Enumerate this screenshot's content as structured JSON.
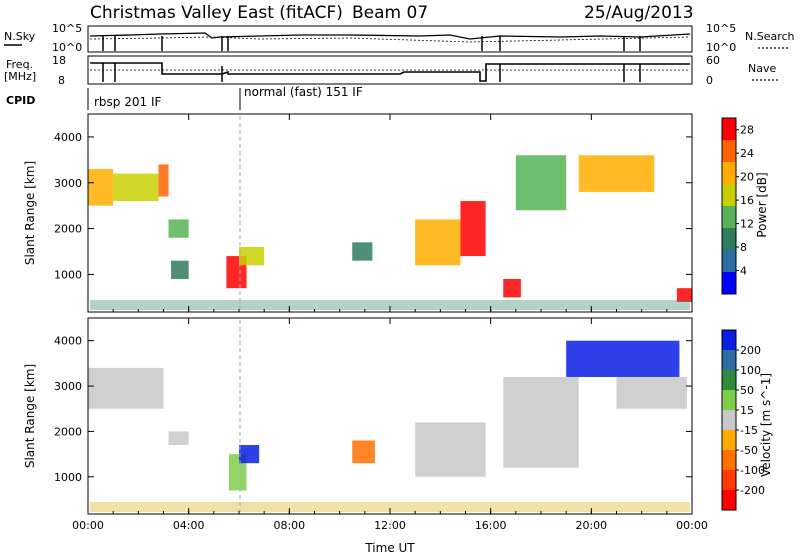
{
  "header": {
    "title": "Christmas Valley East (fitACF)",
    "beam": "Beam 07",
    "date": "25/Aug/2013"
  },
  "panels": {
    "noise": {
      "left_label": "N.Sky",
      "left_ticks": [
        "10^5",
        "10^0"
      ],
      "right_ticks": [
        "10^5",
        "10^0"
      ],
      "right_label": "N.Search"
    },
    "freq": {
      "left_label": [
        "Freq.",
        "[MHz]"
      ],
      "left_ticks": [
        "18",
        "8"
      ],
      "right_ticks": [
        "60",
        "0"
      ],
      "right_label": "Nave"
    },
    "cpid": {
      "label": "CPID",
      "modes": [
        "rbsp 201 IF",
        "normal (fast) 151 IF"
      ]
    }
  },
  "chart_data": [
    {
      "type": "heatmap",
      "title": "",
      "parameter": "Power",
      "xlabel": "",
      "ylabel": "Slant Range [km]",
      "x_ticks": [
        "00:00",
        "04:00",
        "08:00",
        "12:00",
        "16:00",
        "20:00",
        "00:00"
      ],
      "y_ticks": [
        1000,
        2000,
        3000,
        4000
      ],
      "ylim": [
        180,
        4500
      ],
      "xlim_hours": [
        0,
        24
      ],
      "colorbar": {
        "label": "Power [dB]",
        "ticks": [
          4,
          8,
          12,
          16,
          20,
          24,
          28
        ],
        "range": [
          0,
          30
        ],
        "colors": [
          "#0000ff",
          "#2b6ea8",
          "#2e7d5b",
          "#55b455",
          "#c8d000",
          "#ffae00",
          "#ff6400",
          "#ff0000"
        ]
      },
      "regions": [
        {
          "t0": 0.0,
          "t1": 1.0,
          "r0": 2500,
          "r1": 3300,
          "level": 22
        },
        {
          "t0": 1.0,
          "t1": 2.8,
          "r0": 2600,
          "r1": 3200,
          "level": 18
        },
        {
          "t0": 2.8,
          "t1": 3.2,
          "r0": 2700,
          "r1": 3400,
          "level": 24
        },
        {
          "t0": 3.2,
          "t1": 4.0,
          "r0": 1800,
          "r1": 2200,
          "level": 12
        },
        {
          "t0": 3.3,
          "t1": 4.0,
          "r0": 900,
          "r1": 1300,
          "level": 10
        },
        {
          "t0": 5.5,
          "t1": 6.3,
          "r0": 700,
          "r1": 1400,
          "level": 28
        },
        {
          "t0": 6.0,
          "t1": 7.0,
          "r0": 1200,
          "r1": 1600,
          "level": 16
        },
        {
          "t0": 10.5,
          "t1": 11.3,
          "r0": 1300,
          "r1": 1700,
          "level": 8
        },
        {
          "t0": 13.0,
          "t1": 14.8,
          "r0": 1200,
          "r1": 2200,
          "level": 22
        },
        {
          "t0": 14.8,
          "t1": 15.8,
          "r0": 1400,
          "r1": 2600,
          "level": 28
        },
        {
          "t0": 16.5,
          "t1": 17.2,
          "r0": 500,
          "r1": 900,
          "level": 28
        },
        {
          "t0": 17.0,
          "t1": 19.0,
          "r0": 2400,
          "r1": 3600,
          "level": 14
        },
        {
          "t0": 19.5,
          "t1": 22.5,
          "r0": 2800,
          "r1": 3600,
          "level": 20
        },
        {
          "t0": 23.4,
          "t1": 24.0,
          "r0": 400,
          "r1": 700,
          "level": 28
        }
      ]
    },
    {
      "type": "heatmap",
      "title": "",
      "parameter": "Velocity",
      "xlabel": "Time UT",
      "ylabel": "Slant Range [km]",
      "x_ticks": [
        "00:00",
        "04:00",
        "08:00",
        "12:00",
        "16:00",
        "20:00",
        "00:00"
      ],
      "y_ticks": [
        1000,
        2000,
        3000,
        4000
      ],
      "ylim": [
        180,
        4500
      ],
      "xlim_hours": [
        0,
        24
      ],
      "colorbar": {
        "label": "Velocity [m s^-1]",
        "ticks": [
          200,
          100,
          50,
          15,
          -15,
          -50,
          -100,
          -200
        ],
        "colors": [
          "#0a1ee6",
          "#2b6ea8",
          "#2e8b3c",
          "#7ccf4a",
          "#c8c8c8",
          "#ffae00",
          "#ff7000",
          "#ff3a00",
          "#ff0000"
        ]
      },
      "regions": [
        {
          "t0": 0.0,
          "t1": 3.0,
          "r0": 2500,
          "r1": 3400,
          "level": 0
        },
        {
          "t0": 3.2,
          "t1": 4.0,
          "r0": 1700,
          "r1": 2000,
          "level": 0
        },
        {
          "t0": 5.6,
          "t1": 6.3,
          "r0": 700,
          "r1": 1500,
          "level": 30
        },
        {
          "t0": 6.0,
          "t1": 6.8,
          "r0": 1300,
          "r1": 1700,
          "level": 200
        },
        {
          "t0": 10.5,
          "t1": 11.4,
          "r0": 1300,
          "r1": 1800,
          "level": -80
        },
        {
          "t0": 13.0,
          "t1": 15.8,
          "r0": 1000,
          "r1": 2200,
          "level": 0
        },
        {
          "t0": 16.5,
          "t1": 19.5,
          "r0": 1200,
          "r1": 3200,
          "level": 0
        },
        {
          "t0": 19.0,
          "t1": 23.5,
          "r0": 3200,
          "r1": 4000,
          "level": 220
        },
        {
          "t0": 21.0,
          "t1": 23.8,
          "r0": 2500,
          "r1": 3200,
          "level": 0
        }
      ]
    }
  ]
}
